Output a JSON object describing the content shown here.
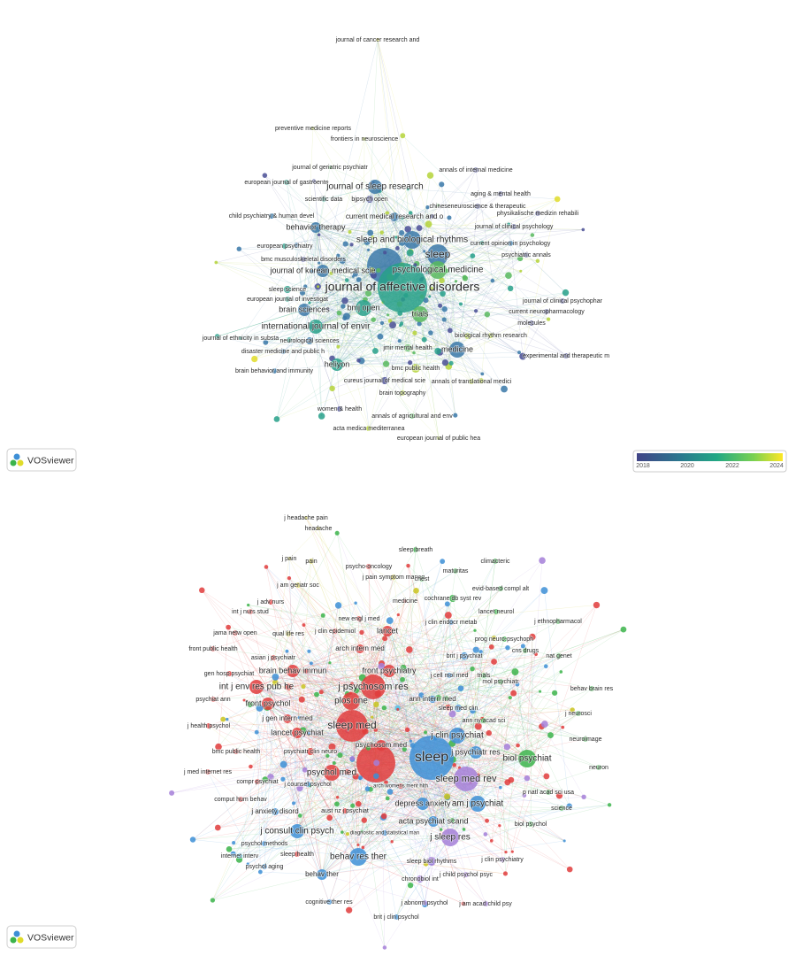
{
  "maps": [
    {
      "logo": "VOSviewer",
      "legend": [
        "2018",
        "2020",
        "2022",
        "2024"
      ],
      "nodes": [
        {
          "label": "journal of cancer research and",
          "color": "#e0dc2a"
        },
        {
          "label": "preventive medicine reports",
          "color": "#b5d33a"
        },
        {
          "label": "frontiers in neuroscience",
          "color": "#b5d33a"
        },
        {
          "label": "journal of geriatric psychiatr",
          "color": "#58b85e"
        },
        {
          "label": "annals of internal medicine",
          "color": "#4a4f95"
        },
        {
          "label": "european journal of gastroente",
          "color": "#27a08a"
        },
        {
          "label": "journal of sleep research",
          "color": "#3a78a8"
        },
        {
          "label": "aging & mental health",
          "color": "#4a4f95"
        },
        {
          "label": "scientific data",
          "color": "#27a08a"
        },
        {
          "label": "bjpsych open",
          "color": "#4a4f95"
        },
        {
          "label": "chineseneuroscience & therapeutic",
          "color": "#4a4f95"
        },
        {
          "label": "child psychiatry & human devel",
          "color": "#3a78a8"
        },
        {
          "label": "current medical research and o",
          "color": "#3a78a8"
        },
        {
          "label": "physikalische medizin rehabili",
          "color": "#4a4f95"
        },
        {
          "label": "journal of clinical psychology",
          "color": "#4a4f95"
        },
        {
          "label": "behavior therapy",
          "color": "#3a78a8"
        },
        {
          "label": "sleep and biological rhythms",
          "color": "#3a78a8"
        },
        {
          "label": "european psychiatry",
          "color": "#27a08a"
        },
        {
          "label": "current opinion in psychology",
          "color": "#3a78a8"
        },
        {
          "label": "sleep",
          "color": "#3a78a8"
        },
        {
          "label": "bmc musculoskeletal disorders",
          "color": "#4a4f95"
        },
        {
          "label": "psychiatric annals",
          "color": "#4a4f95"
        },
        {
          "label": "psychological medicine",
          "color": "#58b85e"
        },
        {
          "label": "journal of korean medical scie",
          "color": "#3a78a8"
        },
        {
          "label": "journal of affective disorders",
          "color": "#27a08a"
        },
        {
          "label": "sleep science",
          "color": "#27a08a"
        },
        {
          "label": "european journal of investigat",
          "color": "#27a08a"
        },
        {
          "label": "journal of clinical psychophar",
          "color": "#4a4f95"
        },
        {
          "label": "brain sciences",
          "color": "#3a78a8"
        },
        {
          "label": "bmj open",
          "color": "#27a08a"
        },
        {
          "label": "current neuropharmacology",
          "color": "#4a4f95"
        },
        {
          "label": "trials",
          "color": "#58b85e"
        },
        {
          "label": "international journal of envir",
          "color": "#27a08a"
        },
        {
          "label": "molecules",
          "color": "#4a4f95"
        },
        {
          "label": "journal of ethnicity in substa",
          "color": "#27a08a"
        },
        {
          "label": "neurological sciences",
          "color": "#3a78a8"
        },
        {
          "label": "biological rhythm research",
          "color": "#b5d33a"
        },
        {
          "label": "disaster medicine and public h",
          "color": "#3a78a8"
        },
        {
          "label": "medicine",
          "color": "#3a78a8"
        },
        {
          "label": "jmir mental health",
          "color": "#58b85e"
        },
        {
          "label": "experimental and therapeutic m",
          "color": "#4a4f95"
        },
        {
          "label": "heliyon",
          "color": "#27a08a"
        },
        {
          "label": "bmc public health",
          "color": "#b5d33a"
        },
        {
          "label": "brain behavior and immunity",
          "color": "#3a78a8"
        },
        {
          "label": "cureus journal of medical scie",
          "color": "#4a4f95"
        },
        {
          "label": "annals of translational medici",
          "color": "#b5d33a"
        },
        {
          "label": "brain topography",
          "color": "#b5d33a"
        },
        {
          "label": "women & health",
          "color": "#4a4f95"
        },
        {
          "label": "annals of agricultural and env",
          "color": "#58b85e"
        },
        {
          "label": "acta medica mediterranea",
          "color": "#b5d33a"
        },
        {
          "label": "european journal of public hea",
          "color": "#b5d33a"
        }
      ]
    },
    {
      "logo": "VOSviewer",
      "nodes": [
        {
          "label": "j headache pain",
          "color": "#c9c41e"
        },
        {
          "label": "headache",
          "color": "#c9c41e"
        },
        {
          "label": "j pain",
          "color": "#c9c41e"
        },
        {
          "label": "pain",
          "color": "#c9c41e"
        },
        {
          "label": "sleep breath",
          "color": "#3cb44b"
        },
        {
          "label": "psycho-oncology",
          "color": "#e03c3c"
        },
        {
          "label": "j pain symptom manag",
          "color": "#c9c41e"
        },
        {
          "label": "climacteric",
          "color": "#3cb44b"
        },
        {
          "label": "maturitas",
          "color": "#3cb44b"
        },
        {
          "label": "chest",
          "color": "#3cb44b"
        },
        {
          "label": "j am geriatr soc",
          "color": "#c9c41e"
        },
        {
          "label": "evid-based compl alt",
          "color": "#3cb44b"
        },
        {
          "label": "medicine",
          "color": "#e03c3c"
        },
        {
          "label": "cochrane db syst rev",
          "color": "#3cb44b"
        },
        {
          "label": "j adv nurs",
          "color": "#e03c3c"
        },
        {
          "label": "int j nurs stud",
          "color": "#e03c3c"
        },
        {
          "label": "new engl j med",
          "color": "#e03c3c"
        },
        {
          "label": "lancet neurol",
          "color": "#3cb44b"
        },
        {
          "label": "j ethnopharmacol",
          "color": "#3cb44b"
        },
        {
          "label": "j clin endocr metab",
          "color": "#3d8fd6"
        },
        {
          "label": "jama netw open",
          "color": "#e03c3c"
        },
        {
          "label": "qual life res",
          "color": "#c9c41e"
        },
        {
          "label": "j clin epidemiol",
          "color": "#e03c3c"
        },
        {
          "label": "lancet",
          "color": "#e03c3c"
        },
        {
          "label": "prog neuro-psychoph",
          "color": "#3cb44b"
        },
        {
          "label": "front public health",
          "color": "#e03c3c"
        },
        {
          "label": "arch intern med",
          "color": "#e03c3c"
        },
        {
          "label": "asian j psychiatr",
          "color": "#e03c3c"
        },
        {
          "label": "brit j psychiat",
          "color": "#3d8fd6"
        },
        {
          "label": "cns drugs",
          "color": "#3cb44b"
        },
        {
          "label": "nat genet",
          "color": "#3cb44b"
        },
        {
          "label": "brain behav immun",
          "color": "#e03c3c"
        },
        {
          "label": "front psychiatry",
          "color": "#e03c3c"
        },
        {
          "label": "gen hosp psychiat",
          "color": "#e03c3c"
        },
        {
          "label": "j cell mol med",
          "color": "#3d8fd6"
        },
        {
          "label": "trials",
          "color": "#3cb44b"
        },
        {
          "label": "mol psychiatr",
          "color": "#3cb44b"
        },
        {
          "label": "int j env res pub he",
          "color": "#e03c3c"
        },
        {
          "label": "j psychosom res",
          "color": "#e03c3c"
        },
        {
          "label": "behav brain res",
          "color": "#3cb44b"
        },
        {
          "label": "psychiat ann",
          "color": "#e03c3c"
        },
        {
          "label": "plos one",
          "color": "#e03c3c"
        },
        {
          "label": "ann intern med",
          "color": "#3d8fd6"
        },
        {
          "label": "sleep med clin",
          "color": "#3d8fd6"
        },
        {
          "label": "front psychol",
          "color": "#e03c3c"
        },
        {
          "label": "j gen intern med",
          "color": "#e03c3c"
        },
        {
          "label": "j neurosci",
          "color": "#3cb44b"
        },
        {
          "label": "j health psychol",
          "color": "#e03c3c"
        },
        {
          "label": "sleep med",
          "color": "#e03c3c"
        },
        {
          "label": "lancet psychiat",
          "color": "#e03c3c"
        },
        {
          "label": "ann ny acad sci",
          "color": "#3cb44b"
        },
        {
          "label": "neuroimage",
          "color": "#3cb44b"
        },
        {
          "label": "j clin psychiat",
          "color": "#3d8fd6"
        },
        {
          "label": "bmc public health",
          "color": "#e03c3c"
        },
        {
          "label": "psychiatr clin neuro",
          "color": "#e03c3c"
        },
        {
          "label": "psychosom med",
          "color": "#e03c3c"
        },
        {
          "label": "sleep",
          "color": "#3d8fd6"
        },
        {
          "label": "j psychiatr res",
          "color": "#3d8fd6"
        },
        {
          "label": "biol psychiat",
          "color": "#3cb44b"
        },
        {
          "label": "neuron",
          "color": "#3cb44b"
        },
        {
          "label": "j med internet res",
          "color": "#e03c3c"
        },
        {
          "label": "psychol med",
          "color": "#e03c3c"
        },
        {
          "label": "compr psychiat",
          "color": "#e03c3c"
        },
        {
          "label": "j counsel psychol",
          "color": "#3d8fd6"
        },
        {
          "label": "arch womens ment hlth",
          "color": "#e03c3c"
        },
        {
          "label": "sleep med rev",
          "color": "#a57fd8"
        },
        {
          "label": "p natl acad sci usa",
          "color": "#3cb44b"
        },
        {
          "label": "comput hum behav",
          "color": "#e03c3c"
        },
        {
          "label": "depress anxiety",
          "color": "#3d8fd6"
        },
        {
          "label": "am j psychiat",
          "color": "#3d8fd6"
        },
        {
          "label": "science",
          "color": "#3cb44b"
        },
        {
          "label": "j anxiety disord",
          "color": "#3d8fd6"
        },
        {
          "label": "aust nz j psychiat",
          "color": "#e03c3c"
        },
        {
          "label": "j consult clin psych",
          "color": "#3d8fd6"
        },
        {
          "label": "diagnostic and statistical man",
          "color": "#3d8fd6"
        },
        {
          "label": "acta psychiat scand",
          "color": "#3d8fd6"
        },
        {
          "label": "biol psychol",
          "color": "#3cb44b"
        },
        {
          "label": "j sleep res",
          "color": "#a57fd8"
        },
        {
          "label": "psychol methods",
          "color": "#3d8fd6"
        },
        {
          "label": "behav res ther",
          "color": "#3d8fd6"
        },
        {
          "label": "internet interv",
          "color": "#55c1e8"
        },
        {
          "label": "sleep health",
          "color": "#e03c3c"
        },
        {
          "label": "j clin psychiatry",
          "color": "#a57fd8"
        },
        {
          "label": "sleep biol rhythms",
          "color": "#a57fd8"
        },
        {
          "label": "psychol aging",
          "color": "#3d8fd6"
        },
        {
          "label": "behav ther",
          "color": "#3d8fd6"
        },
        {
          "label": "j child psychol psyc",
          "color": "#a57fd8"
        },
        {
          "label": "chronobiol int",
          "color": "#a57fd8"
        },
        {
          "label": "cognitive ther res",
          "color": "#3d8fd6"
        },
        {
          "label": "j abnorm psychol",
          "color": "#a57fd8"
        },
        {
          "label": "j am acad child psy",
          "color": "#a57fd8"
        },
        {
          "label": "brit j clin psychol",
          "color": "#3d8fd6"
        }
      ]
    }
  ]
}
